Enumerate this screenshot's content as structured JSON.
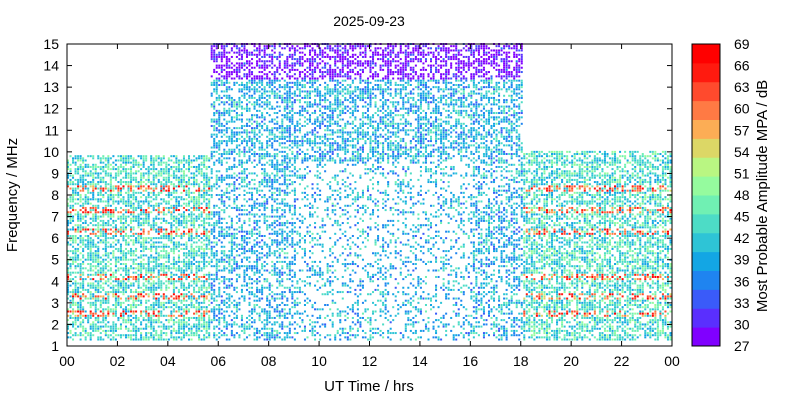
{
  "chart_data": {
    "type": "heatmap",
    "title": "2025-09-23",
    "xlabel": "UT Time / hrs",
    "ylabel": "Frequency / MHz",
    "xlim": [
      0,
      24
    ],
    "ylim": [
      1,
      15
    ],
    "x_ticks": [
      "00",
      "02",
      "04",
      "06",
      "08",
      "10",
      "12",
      "14",
      "16",
      "18",
      "20",
      "22",
      "00"
    ],
    "y_ticks": [
      "1",
      "2",
      "3",
      "4",
      "5",
      "6",
      "7",
      "8",
      "9",
      "10",
      "11",
      "12",
      "13",
      "14",
      "15"
    ],
    "grid": false,
    "colorbar": {
      "label": "Most Probable Amplitude MPA / dB",
      "range": [
        27,
        69
      ],
      "tick_labels": [
        "27",
        "30",
        "33",
        "36",
        "39",
        "42",
        "45",
        "48",
        "51",
        "54",
        "57",
        "60",
        "63",
        "66",
        "69"
      ],
      "colors": [
        "#8000ff",
        "#5a2ffe",
        "#3a5bf9",
        "#1f84f0",
        "#13a6e4",
        "#2ec4d6",
        "#4ddcc6",
        "#70f0b3",
        "#95fb9e",
        "#b9f682",
        "#dcd766",
        "#fcad55",
        "#ff7a44",
        "#ff4a2d",
        "#ff1a0f",
        "#ff0000"
      ]
    },
    "regions": [
      {
        "x": [
          0,
          5.6
        ],
        "y": [
          1.3,
          9.8
        ],
        "typical_amplitude": 44
      },
      {
        "x": [
          5.6,
          18
        ],
        "y": [
          1.3,
          15
        ],
        "typical_amplitude": 40
      },
      {
        "x": [
          18,
          24
        ],
        "y": [
          1.3,
          10.0
        ],
        "typical_amplitude": 44
      }
    ],
    "high_amplitude_bands_mhz": [
      2.5,
      3.3,
      4.2,
      6.3,
      7.3,
      8.3
    ]
  }
}
